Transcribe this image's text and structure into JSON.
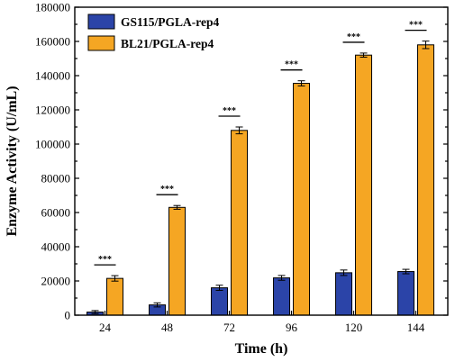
{
  "chart_data": {
    "type": "bar",
    "title": "",
    "xlabel": "Time (h)",
    "ylabel": "Enzyme Activity (U/mL)",
    "categories": [
      "24",
      "48",
      "72",
      "96",
      "120",
      "144"
    ],
    "ylim": [
      0,
      180000
    ],
    "yticks": [
      "0",
      "20000",
      "40000",
      "60000",
      "80000",
      "100000",
      "120000",
      "140000",
      "160000",
      "180000"
    ],
    "legend_position": "top-left",
    "series": [
      {
        "name": "GS115/PGLA-rep4",
        "color": "#2B44A8",
        "values": [
          1800,
          6000,
          16000,
          21800,
          24800,
          25500
        ],
        "errors": [
          900,
          1200,
          1500,
          1400,
          1600,
          1300
        ]
      },
      {
        "name": "BL21/PGLA-rep4",
        "color": "#F5A623",
        "values": [
          21500,
          63000,
          108000,
          135500,
          152000,
          158000
        ],
        "errors": [
          1600,
          1100,
          2000,
          1500,
          1200,
          2200
        ]
      }
    ],
    "significance": [
      "***",
      "***",
      "***",
      "***",
      "***",
      "***"
    ]
  }
}
